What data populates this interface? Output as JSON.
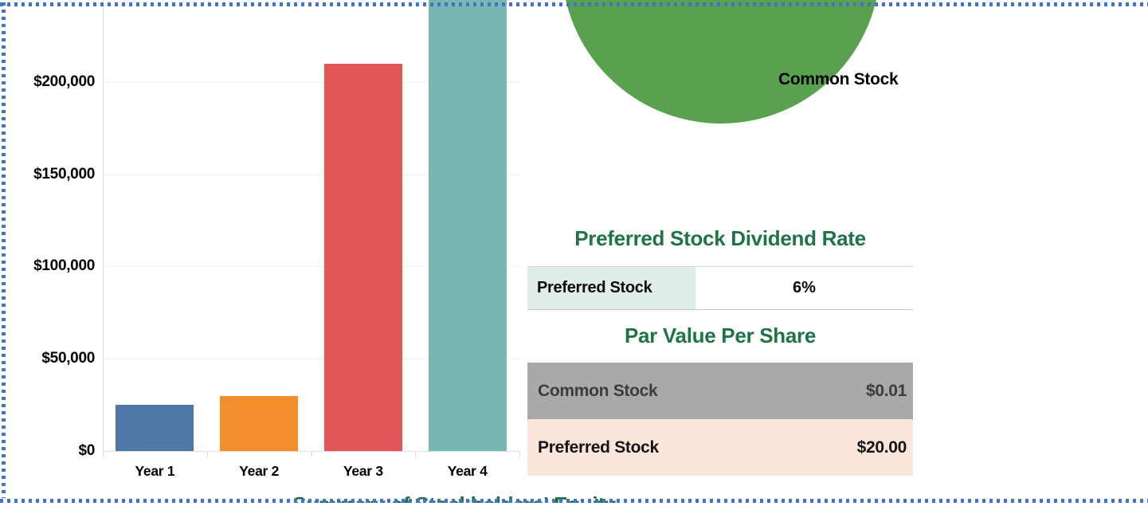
{
  "colors": {
    "page_border_blue": "#4274c4",
    "heading_green": "#1e7446",
    "pie_green": "#59a14f",
    "mint_cell_bg": "#e1eee7",
    "gray_row_bg": "#a9a9a9",
    "gray_row_text": "#3c3c3c",
    "peach_row_bg": "#fce6dc",
    "peach_row_text": "#141414"
  },
  "chart_data": [
    {
      "type": "bar",
      "title": "Summary of Stockholders' Equity",
      "title_partially_visible": true,
      "categories": [
        "Year 1",
        "Year 2",
        "Year 3",
        "Year 4"
      ],
      "values": [
        25000,
        30000,
        210000,
        245000
      ],
      "clipped_at_top": [
        false,
        false,
        false,
        true
      ],
      "bar_colors": [
        "#4e79a7",
        "#f28e2b",
        "#e15759",
        "#76b7b2"
      ],
      "tick_values": [
        0,
        50000,
        100000,
        150000,
        200000
      ],
      "tick_labels": [
        "$0",
        "$50,000",
        "$100,000",
        "$150,000",
        "$200,000"
      ],
      "ylim": [
        0,
        244500
      ],
      "xlabel": "",
      "ylabel": "",
      "grid": true,
      "note": "Year 4 bar extends beyond the top edge of the visible area"
    },
    {
      "type": "pie",
      "slices": [
        {
          "label": "Common Stock",
          "color": "#59a14f"
        }
      ],
      "note": "circle clipped at top edge of image; only green slice visible"
    }
  ],
  "tables": {
    "dividend_rate": {
      "title": "Preferred Stock Dividend Rate",
      "rows": [
        {
          "label": "Preferred Stock",
          "value": "6%"
        }
      ]
    },
    "par_value": {
      "title": "Par Value Per Share",
      "rows": [
        {
          "label": "Common Stock",
          "value": "$0.01"
        },
        {
          "label": "Preferred Stock",
          "value": "$20.00"
        }
      ]
    }
  }
}
